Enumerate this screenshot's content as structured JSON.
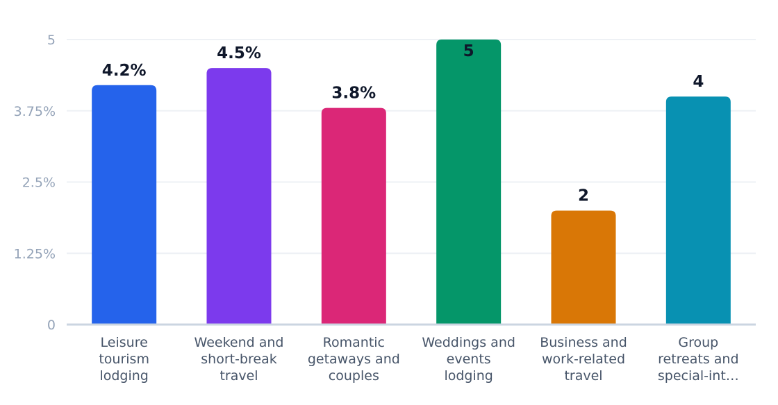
{
  "chart_data": {
    "type": "bar",
    "title": "",
    "xlabel": "",
    "ylabel": "",
    "ylim": [
      0,
      5
    ],
    "grid": true,
    "legend": "none",
    "yticks": [
      {
        "value": 0,
        "label": "0"
      },
      {
        "value": 1.25,
        "label": "1.25%"
      },
      {
        "value": 2.5,
        "label": "2.5%"
      },
      {
        "value": 3.75,
        "label": "3.75%"
      },
      {
        "value": 5,
        "label": "5"
      }
    ],
    "categories": [
      [
        "Leisure",
        "tourism",
        "lodging"
      ],
      [
        "Weekend and",
        "short-break",
        "travel"
      ],
      [
        "Romantic",
        "getaways and",
        "couples"
      ],
      [
        "Weddings and",
        "events",
        "lodging"
      ],
      [
        "Business and",
        "work-related",
        "travel"
      ],
      [
        "Group",
        "retreats and",
        "special-int…"
      ]
    ],
    "values": [
      4.2,
      4.5,
      3.8,
      5,
      2,
      4
    ],
    "data_labels": [
      "4.2%",
      "4.5%",
      "3.8%",
      "5",
      "2",
      "4"
    ],
    "colors": [
      "#2563eb",
      "#7c3aed",
      "#db2777",
      "#059669",
      "#d97706",
      "#0891b2"
    ]
  }
}
